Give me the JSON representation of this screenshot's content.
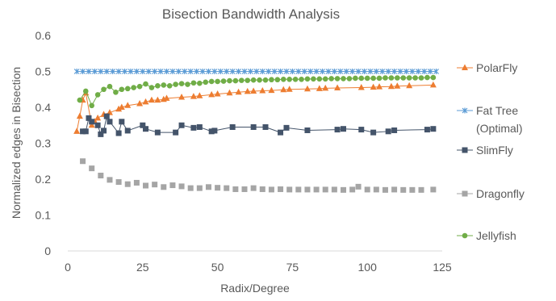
{
  "chart_data": {
    "type": "scatter",
    "title": "Bisection Bandwidth Analysis",
    "xlabel": "Radix/Degree",
    "ylabel": "Normalized edges in Bisection",
    "xlim": [
      0,
      125
    ],
    "ylim": [
      0,
      0.6
    ],
    "x_ticks": [
      "0",
      "25",
      "50",
      "75",
      "100",
      "125"
    ],
    "y_ticks": [
      "0",
      "0.1",
      "0.2",
      "0.3",
      "0.4",
      "0.5",
      "0.6"
    ],
    "grid": false,
    "legend_position": "right",
    "series": [
      {
        "name": "PolarFly",
        "legend_lines": [
          "PolarFly"
        ],
        "color": "#ED7D31",
        "marker": "triangle",
        "connected": true,
        "points": [
          [
            3,
            0.333
          ],
          [
            4,
            0.375
          ],
          [
            5,
            0.42
          ],
          [
            6,
            0.44
          ],
          [
            8,
            0.35
          ],
          [
            9,
            0.36
          ],
          [
            10,
            0.37
          ],
          [
            12,
            0.38
          ],
          [
            14,
            0.385
          ],
          [
            17,
            0.395
          ],
          [
            18,
            0.4
          ],
          [
            20,
            0.405
          ],
          [
            24,
            0.41
          ],
          [
            26,
            0.415
          ],
          [
            28,
            0.42
          ],
          [
            30,
            0.42
          ],
          [
            32,
            0.422
          ],
          [
            33,
            0.425
          ],
          [
            38,
            0.428
          ],
          [
            42,
            0.43
          ],
          [
            44,
            0.432
          ],
          [
            48,
            0.435
          ],
          [
            50,
            0.437
          ],
          [
            54,
            0.44
          ],
          [
            57,
            0.442
          ],
          [
            60,
            0.444
          ],
          [
            62,
            0.445
          ],
          [
            65,
            0.446
          ],
          [
            68,
            0.447
          ],
          [
            72,
            0.449
          ],
          [
            74,
            0.45
          ],
          [
            80,
            0.451
          ],
          [
            84,
            0.452
          ],
          [
            86,
            0.453
          ],
          [
            90,
            0.454
          ],
          [
            98,
            0.455
          ],
          [
            102,
            0.456
          ],
          [
            104,
            0.457
          ],
          [
            108,
            0.458
          ],
          [
            110,
            0.459
          ],
          [
            114,
            0.46
          ],
          [
            122,
            0.462
          ]
        ]
      },
      {
        "name": "Fat Tree (Optimal)",
        "legend_lines": [
          "Fat Tree",
          "(Optimal)"
        ],
        "color": "#5B9BD5",
        "marker": "star",
        "connected": true,
        "points": [
          [
            3,
            0.5
          ],
          [
            5,
            0.5
          ],
          [
            7,
            0.5
          ],
          [
            9,
            0.5
          ],
          [
            11,
            0.5
          ],
          [
            13,
            0.5
          ],
          [
            15,
            0.5
          ],
          [
            17,
            0.5
          ],
          [
            19,
            0.5
          ],
          [
            21,
            0.5
          ],
          [
            23,
            0.5
          ],
          [
            25,
            0.5
          ],
          [
            27,
            0.5
          ],
          [
            29,
            0.5
          ],
          [
            31,
            0.5
          ],
          [
            33,
            0.5
          ],
          [
            35,
            0.5
          ],
          [
            37,
            0.5
          ],
          [
            39,
            0.5
          ],
          [
            41,
            0.5
          ],
          [
            43,
            0.5
          ],
          [
            45,
            0.5
          ],
          [
            47,
            0.5
          ],
          [
            49,
            0.5
          ],
          [
            51,
            0.5
          ],
          [
            53,
            0.5
          ],
          [
            55,
            0.5
          ],
          [
            57,
            0.5
          ],
          [
            59,
            0.5
          ],
          [
            61,
            0.5
          ],
          [
            63,
            0.5
          ],
          [
            65,
            0.5
          ],
          [
            67,
            0.5
          ],
          [
            69,
            0.5
          ],
          [
            71,
            0.5
          ],
          [
            73,
            0.5
          ],
          [
            75,
            0.5
          ],
          [
            77,
            0.5
          ],
          [
            79,
            0.5
          ],
          [
            81,
            0.5
          ],
          [
            83,
            0.5
          ],
          [
            85,
            0.5
          ],
          [
            87,
            0.5
          ],
          [
            89,
            0.5
          ],
          [
            91,
            0.5
          ],
          [
            93,
            0.5
          ],
          [
            95,
            0.5
          ],
          [
            97,
            0.5
          ],
          [
            99,
            0.5
          ],
          [
            101,
            0.5
          ],
          [
            103,
            0.5
          ],
          [
            105,
            0.5
          ],
          [
            107,
            0.5
          ],
          [
            109,
            0.5
          ],
          [
            111,
            0.5
          ],
          [
            113,
            0.5
          ],
          [
            115,
            0.5
          ],
          [
            117,
            0.5
          ],
          [
            119,
            0.5
          ],
          [
            121,
            0.5
          ],
          [
            123,
            0.5
          ]
        ]
      },
      {
        "name": "SlimFly",
        "legend_lines": [
          "SlimFly"
        ],
        "color": "#44546A",
        "marker": "square",
        "connected": true,
        "points": [
          [
            5,
            0.333
          ],
          [
            6,
            0.333
          ],
          [
            7,
            0.37
          ],
          [
            8,
            0.36
          ],
          [
            10,
            0.35
          ],
          [
            11,
            0.325
          ],
          [
            12,
            0.335
          ],
          [
            13,
            0.375
          ],
          [
            14,
            0.36
          ],
          [
            17,
            0.328
          ],
          [
            18,
            0.36
          ],
          [
            20,
            0.335
          ],
          [
            25,
            0.35
          ],
          [
            26,
            0.34
          ],
          [
            30,
            0.33
          ],
          [
            36,
            0.33
          ],
          [
            38,
            0.35
          ],
          [
            42,
            0.343
          ],
          [
            44,
            0.345
          ],
          [
            48,
            0.333
          ],
          [
            49,
            0.335
          ],
          [
            55,
            0.345
          ],
          [
            62,
            0.345
          ],
          [
            66,
            0.345
          ],
          [
            71,
            0.33
          ],
          [
            73,
            0.343
          ],
          [
            80,
            0.336
          ],
          [
            90,
            0.338
          ],
          [
            92,
            0.34
          ],
          [
            98,
            0.338
          ],
          [
            102,
            0.33
          ],
          [
            107,
            0.333
          ],
          [
            109,
            0.336
          ],
          [
            120,
            0.338
          ],
          [
            122,
            0.34
          ]
        ]
      },
      {
        "name": "Dragonfly",
        "legend_lines": [
          "Dragonfly"
        ],
        "color": "#A5A5A5",
        "marker": "square",
        "connected": false,
        "points": [
          [
            5,
            0.25
          ],
          [
            8,
            0.23
          ],
          [
            11,
            0.21
          ],
          [
            14,
            0.198
          ],
          [
            17,
            0.192
          ],
          [
            20,
            0.186
          ],
          [
            23,
            0.19
          ],
          [
            26,
            0.182
          ],
          [
            29,
            0.185
          ],
          [
            32,
            0.178
          ],
          [
            35,
            0.183
          ],
          [
            38,
            0.18
          ],
          [
            41,
            0.175
          ],
          [
            44,
            0.175
          ],
          [
            47,
            0.178
          ],
          [
            50,
            0.176
          ],
          [
            53,
            0.175
          ],
          [
            56,
            0.172
          ],
          [
            59,
            0.172
          ],
          [
            62,
            0.175
          ],
          [
            65,
            0.172
          ],
          [
            68,
            0.171
          ],
          [
            71,
            0.172
          ],
          [
            74,
            0.171
          ],
          [
            77,
            0.171
          ],
          [
            80,
            0.171
          ],
          [
            83,
            0.171
          ],
          [
            86,
            0.171
          ],
          [
            89,
            0.171
          ],
          [
            92,
            0.17
          ],
          [
            95,
            0.171
          ],
          [
            97,
            0.179
          ],
          [
            100,
            0.171
          ],
          [
            103,
            0.171
          ],
          [
            106,
            0.17
          ],
          [
            109,
            0.171
          ],
          [
            112,
            0.17
          ],
          [
            115,
            0.17
          ],
          [
            118,
            0.17
          ],
          [
            122,
            0.171
          ]
        ]
      },
      {
        "name": "Jellyfish",
        "legend_lines": [
          "Jellyfish"
        ],
        "color": "#70AD47",
        "marker": "circle",
        "connected": true,
        "points": [
          [
            4,
            0.42
          ],
          [
            6,
            0.445
          ],
          [
            8,
            0.405
          ],
          [
            10,
            0.435
          ],
          [
            12,
            0.45
          ],
          [
            14,
            0.458
          ],
          [
            16,
            0.442
          ],
          [
            18,
            0.45
          ],
          [
            20,
            0.452
          ],
          [
            22,
            0.455
          ],
          [
            24,
            0.458
          ],
          [
            26,
            0.465
          ],
          [
            28,
            0.455
          ],
          [
            30,
            0.46
          ],
          [
            32,
            0.462
          ],
          [
            34,
            0.46
          ],
          [
            36,
            0.464
          ],
          [
            38,
            0.466
          ],
          [
            40,
            0.464
          ],
          [
            42,
            0.468
          ],
          [
            44,
            0.467
          ],
          [
            46,
            0.47
          ],
          [
            48,
            0.472
          ],
          [
            50,
            0.472
          ],
          [
            52,
            0.473
          ],
          [
            54,
            0.474
          ],
          [
            56,
            0.474
          ],
          [
            58,
            0.475
          ],
          [
            60,
            0.475
          ],
          [
            62,
            0.476
          ],
          [
            64,
            0.476
          ],
          [
            66,
            0.476
          ],
          [
            68,
            0.477
          ],
          [
            70,
            0.477
          ],
          [
            72,
            0.478
          ],
          [
            74,
            0.478
          ],
          [
            76,
            0.478
          ],
          [
            78,
            0.478
          ],
          [
            80,
            0.479
          ],
          [
            82,
            0.479
          ],
          [
            84,
            0.479
          ],
          [
            86,
            0.479
          ],
          [
            88,
            0.48
          ],
          [
            90,
            0.48
          ],
          [
            92,
            0.48
          ],
          [
            94,
            0.48
          ],
          [
            96,
            0.481
          ],
          [
            98,
            0.481
          ],
          [
            100,
            0.481
          ],
          [
            102,
            0.481
          ],
          [
            104,
            0.481
          ],
          [
            106,
            0.482
          ],
          [
            108,
            0.482
          ],
          [
            110,
            0.482
          ],
          [
            112,
            0.482
          ],
          [
            114,
            0.482
          ],
          [
            116,
            0.482
          ],
          [
            118,
            0.482
          ],
          [
            120,
            0.483
          ],
          [
            122,
            0.483
          ]
        ]
      }
    ]
  }
}
